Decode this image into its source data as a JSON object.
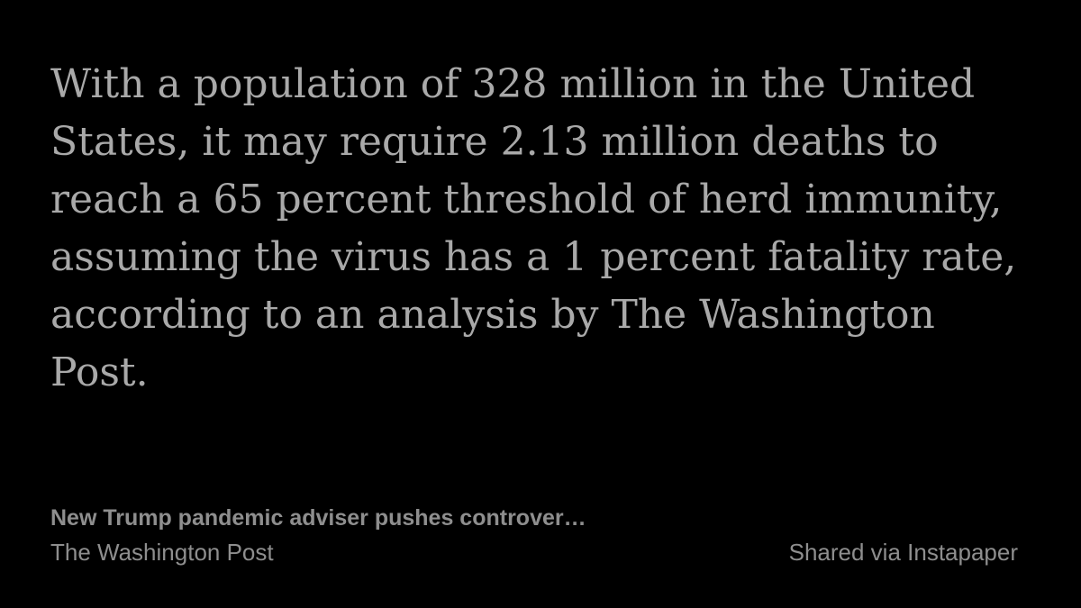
{
  "quote": {
    "lines": [
      "With a population of 328 million in the United",
      "States, it may require 2.13 million deaths to",
      "reach a 65 percent threshold of herd immunity,",
      "assuming the virus has a 1 percent fatality rate,",
      "according to an analysis by The Washington",
      "Post."
    ]
  },
  "article": {
    "title": "New Trump pandemic adviser pushes controver…",
    "source": "The Washington Post"
  },
  "footer": {
    "shared_via": "Shared via Instapaper"
  },
  "colors": {
    "background": "#000000",
    "quote_text": "#a9a9a9",
    "meta_text": "#8e8e8e"
  }
}
